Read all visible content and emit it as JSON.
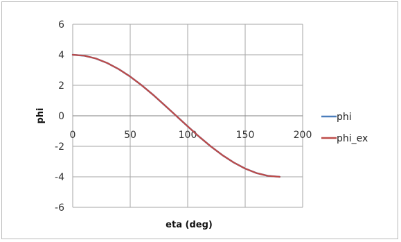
{
  "chart_data": {
    "type": "line",
    "title": "",
    "xlabel": "eta (deg)",
    "ylabel": "phi",
    "xlim": [
      0,
      200
    ],
    "ylim": [
      -6,
      6
    ],
    "xticks": [
      0,
      50,
      100,
      150,
      200
    ],
    "yticks": [
      6,
      4,
      2,
      0,
      -2,
      -4,
      -6
    ],
    "grid": true,
    "legend_position": "right",
    "x_tick_labels_at_zero_line": true,
    "series": [
      {
        "name": "phi",
        "color": "#4a7ebb",
        "x": [
          0,
          10,
          20,
          30,
          40,
          50,
          60,
          70,
          80,
          90,
          100,
          110,
          120,
          130,
          140,
          150,
          160,
          170,
          180
        ],
        "y": [
          4.0,
          3.94,
          3.76,
          3.46,
          3.06,
          2.57,
          2.0,
          1.37,
          0.69,
          0.0,
          -0.69,
          -1.37,
          -2.0,
          -2.57,
          -3.06,
          -3.46,
          -3.76,
          -3.94,
          -4.0
        ]
      },
      {
        "name": "phi_ex",
        "color": "#be4b48",
        "x": [
          0,
          10,
          20,
          30,
          40,
          50,
          60,
          70,
          80,
          90,
          100,
          110,
          120,
          130,
          140,
          150,
          160,
          170,
          180
        ],
        "y": [
          4.0,
          3.94,
          3.76,
          3.46,
          3.06,
          2.57,
          2.0,
          1.37,
          0.69,
          0.0,
          -0.69,
          -1.37,
          -2.0,
          -2.57,
          -3.06,
          -3.46,
          -3.76,
          -3.94,
          -4.0
        ]
      }
    ]
  }
}
